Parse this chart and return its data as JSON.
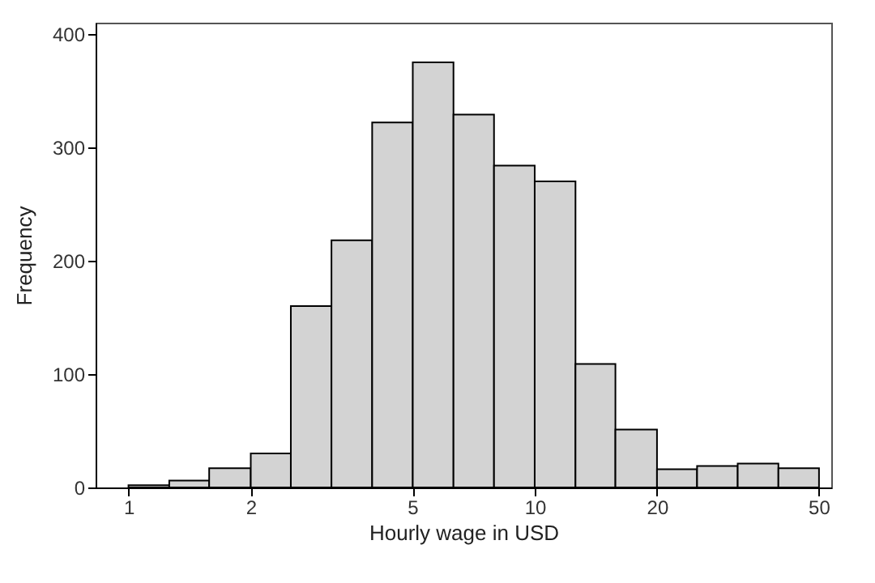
{
  "chart_data": {
    "type": "histogram",
    "xlabel": "Hourly wage in USD",
    "ylabel": "Frequency",
    "bins": [
      1,
      1.26,
      1.58,
      2,
      2.51,
      3.16,
      3.98,
      5.01,
      6.31,
      7.94,
      10,
      12.6,
      15.8,
      20,
      25.1,
      31.6,
      39.8,
      50.1
    ],
    "values": [
      2,
      6,
      17,
      30,
      160,
      218,
      322,
      375,
      329,
      284,
      270,
      109,
      51,
      16,
      19,
      21,
      17
    ],
    "color": "#d3d3d3",
    "log": "x",
    "xlim": [
      0.83,
      53.7
    ],
    "xticks": [
      1,
      2,
      5,
      10,
      20,
      50
    ],
    "ylim": [
      0,
      410
    ],
    "yticks": [
      0,
      100,
      200,
      300,
      400
    ],
    "grid": false
  }
}
